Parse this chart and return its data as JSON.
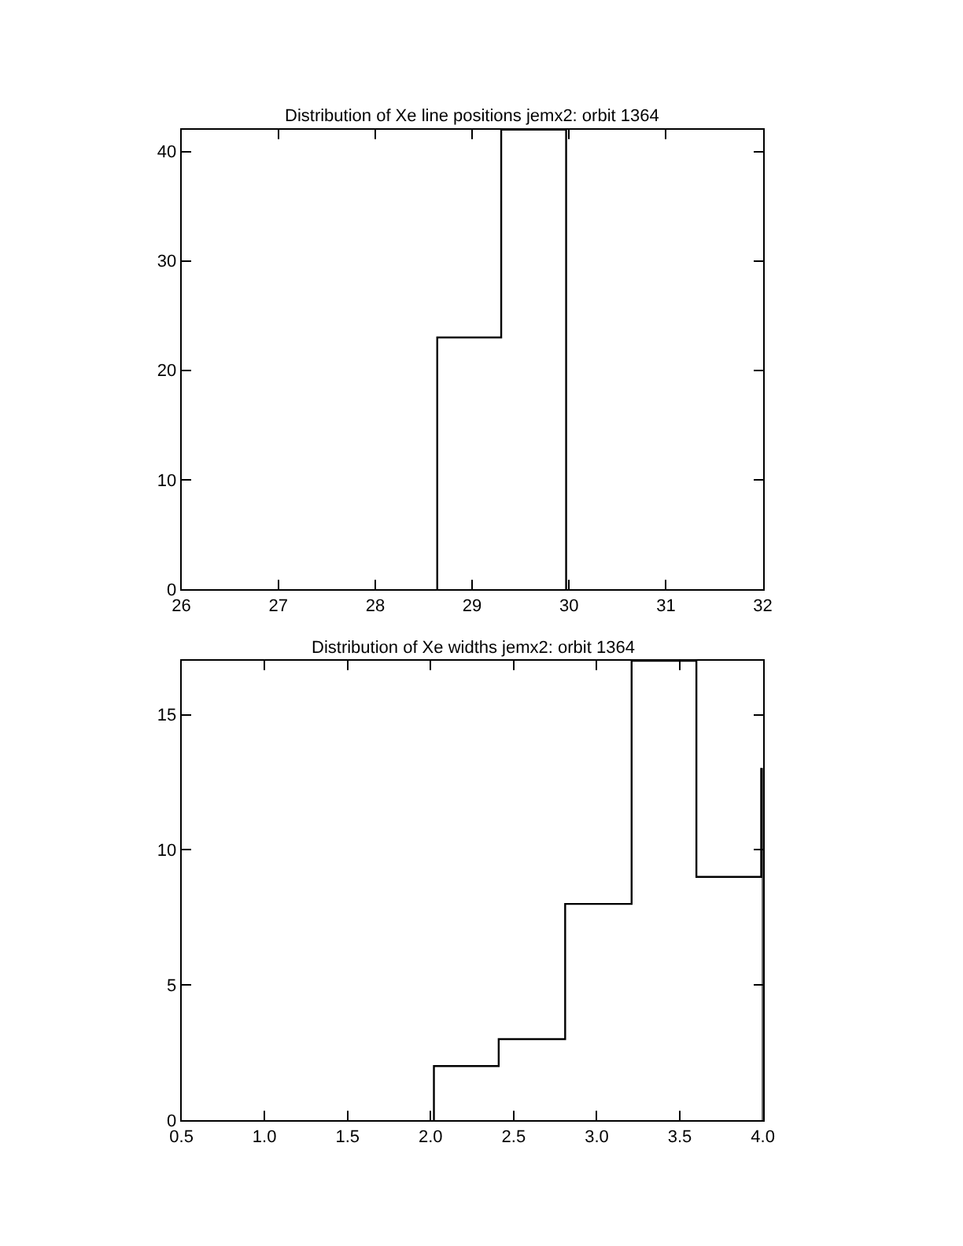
{
  "chart_data": [
    {
      "type": "histogram",
      "title": "Distribution of Xe line positions jemx2: orbit 1364",
      "bins": [
        28.64,
        29.3,
        29.97
      ],
      "values": [
        23,
        42
      ],
      "color": "#000000",
      "xlim": [
        26,
        32
      ],
      "xticks": [
        26,
        27,
        28,
        29,
        30,
        31,
        32
      ],
      "ylim": [
        0,
        42
      ],
      "yticks": [
        0,
        10,
        20,
        30,
        40
      ]
    },
    {
      "type": "histogram",
      "title": "Distribution of Xe widths jemx2: orbit 1364",
      "bins": [
        2.02,
        2.41,
        2.81,
        3.21,
        3.6,
        3.99,
        4.0
      ],
      "values": [
        2,
        3,
        8,
        17,
        9,
        13
      ],
      "color": "#000000",
      "xlim": [
        0.5,
        4.0
      ],
      "xticks": [
        {
          "value": 0.5,
          "label": "0.5"
        },
        {
          "value": 1.0,
          "label": "1.0"
        },
        {
          "value": 1.5,
          "label": "1.5"
        },
        {
          "value": 2.0,
          "label": "2.0"
        },
        {
          "value": 2.5,
          "label": "2.5"
        },
        {
          "value": 3.0,
          "label": "3.0"
        },
        {
          "value": 3.5,
          "label": "3.5"
        },
        {
          "value": 4.0,
          "label": "4.0"
        }
      ],
      "ylim": [
        0,
        17
      ],
      "yticks": [
        0,
        5,
        10,
        15
      ]
    }
  ]
}
